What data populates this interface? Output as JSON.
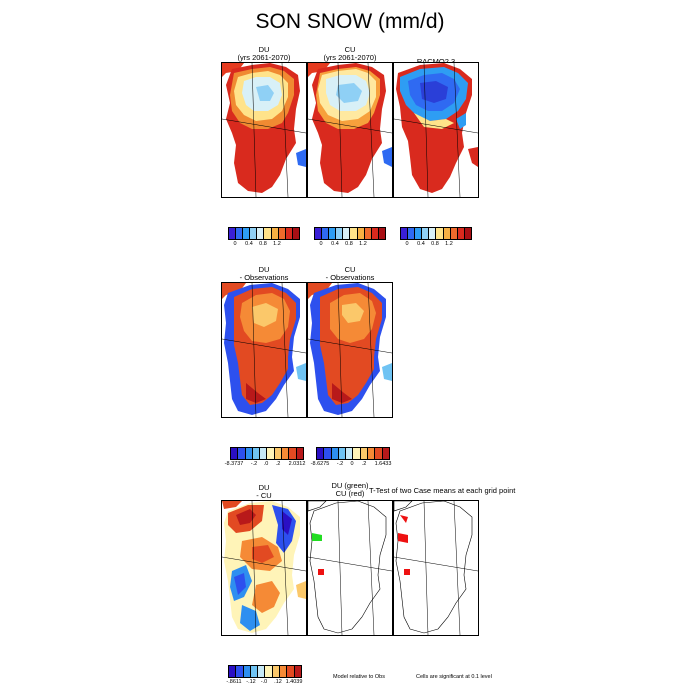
{
  "title": "SON SNOW (mm/d)",
  "row1": {
    "panels": [
      {
        "title1": "DU",
        "title2": "(yrs 2061-2070)"
      },
      {
        "title1": "CU",
        "title2": "(yrs 2061-2070)"
      },
      {
        "title1": "RACMO2.3",
        "title2": ""
      }
    ],
    "colorbar": {
      "ticks": [
        "0",
        "0.4",
        "0.8",
        "1.2"
      ],
      "colors": [
        "#3a1fd6",
        "#2f6af2",
        "#2e9df3",
        "#8fd0f5",
        "#d8f0f7",
        "#ffe38a",
        "#f7b043",
        "#ef6a2c",
        "#d92a1e",
        "#a80f14"
      ]
    }
  },
  "row2": {
    "panels": [
      {
        "title1": "DU",
        "title2": "- Observations"
      },
      {
        "title1": "CU",
        "title2": "- Observations"
      }
    ],
    "colorbars": [
      {
        "ticks": [
          "-8.3737",
          "-.2",
          ".0",
          ".2",
          "2.0312"
        ]
      },
      {
        "ticks": [
          "-8.6275",
          "-.2",
          "0",
          ".2",
          "1.6433"
        ]
      }
    ],
    "colors": [
      "#2a0fc4",
      "#2d50ee",
      "#2e8ff0",
      "#6fc3f3",
      "#c6e9f7",
      "#fff4b8",
      "#fbc86a",
      "#f58a36",
      "#e24a22",
      "#b8191a"
    ]
  },
  "row3": {
    "panel_du_cu": {
      "title1": "DU",
      "title2": "- CU"
    },
    "ttest": {
      "title1": "DU (green)",
      "title2": "CU (red)",
      "header": "T-Test of two Case means at each grid point"
    },
    "colorbar": {
      "ticks": [
        "-.8611",
        "-.12",
        "-.0",
        ".12",
        "1.4039"
      ]
    },
    "notes": [
      "Model relative to Obs",
      "Cells are significant at 0.1 level"
    ],
    "sig_colors": {
      "du": "#22dd22",
      "cu": "#ee1111"
    }
  }
}
